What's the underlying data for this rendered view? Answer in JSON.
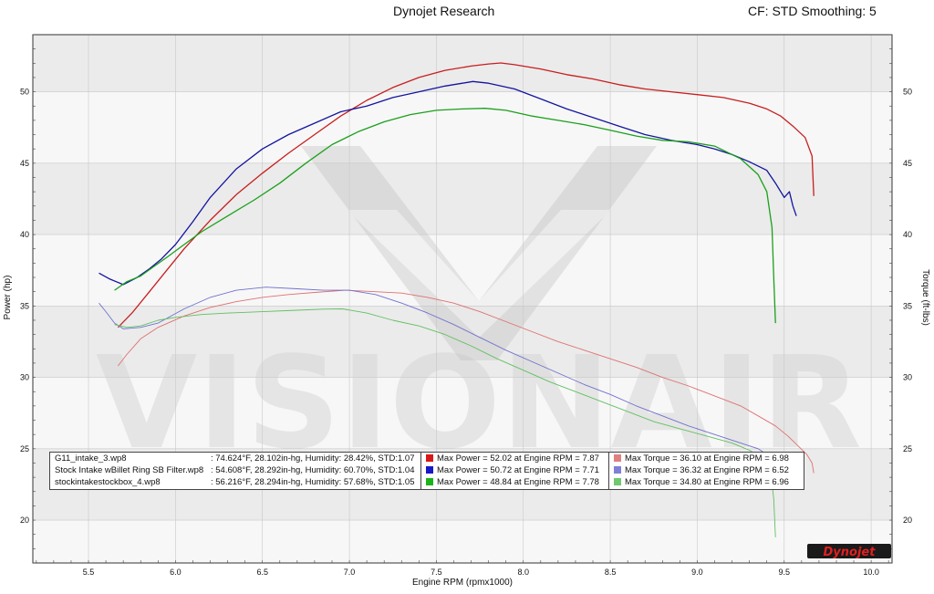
{
  "header": {
    "title": "Dynojet Research",
    "settings": "CF: STD Smoothing: 5"
  },
  "watermark": {
    "text": "VISIONAIR",
    "color": "#cfcfcf"
  },
  "logo": {
    "text": "Dynojet"
  },
  "colors": {
    "run1_power": "#c81e1e",
    "run1_torque": "#e07070",
    "run2_power": "#1414a0",
    "run2_torque": "#7070d0",
    "run3_power": "#1aa01a",
    "run3_torque": "#60c060"
  },
  "legend": {
    "runs": [
      {
        "name": "G11_intake_3.wp8",
        "conditions": ": 74.624°F, 28.102in-hg, Humidity: 28.42%, STD:1.07",
        "max_power": "Max Power = 52.02 at Engine RPM = 7.87",
        "max_torque": "Max Torque = 36.10 at Engine RPM = 6.98",
        "power_color": "#d81818",
        "torque_color": "#e08080"
      },
      {
        "name": "Stock Intake wBillet Ring SB Filter.wp8",
        "conditions": ": 54.608°F, 28.292in-hg, Humidity: 60.70%, STD:1.04",
        "max_power": "Max Power = 50.72 at Engine RPM = 7.71",
        "max_torque": "Max Torque = 36.32 at Engine RPM = 6.52",
        "power_color": "#1818c8",
        "torque_color": "#8080d8"
      },
      {
        "name": "stockintakestockbox_4.wp8",
        "conditions": ": 56.216°F, 28.294in-hg, Humidity: 57.68%, STD:1.05",
        "max_power": "Max Power = 48.84 at Engine RPM = 7.78",
        "max_torque": "Max Torque = 34.80 at Engine RPM = 6.96",
        "power_color": "#18b418",
        "torque_color": "#70c870"
      }
    ]
  },
  "chart_data": {
    "type": "line",
    "xlabel": "Engine RPM (rpmx1000)",
    "ylabel_left": "Power (hp)",
    "ylabel_right": "Torque (ft-lbs)",
    "xlim": [
      5.18,
      10.12
    ],
    "ylim": [
      17.0,
      54.0
    ],
    "x_ticks": [
      "5.5",
      "6.0",
      "6.5",
      "7.0",
      "7.5",
      "8.0",
      "8.5",
      "9.0",
      "9.5",
      "10.0"
    ],
    "y_ticks": [
      "20",
      "25",
      "30",
      "35",
      "40",
      "45",
      "50"
    ],
    "grid": true,
    "series": [
      {
        "name": "G11_intake_3.wp8",
        "kind": "power",
        "color": "#c81e1e",
        "x": [
          5.67,
          5.75,
          5.85,
          5.95,
          6.05,
          6.2,
          6.35,
          6.5,
          6.65,
          6.8,
          6.95,
          7.1,
          7.25,
          7.4,
          7.55,
          7.7,
          7.8,
          7.87,
          7.95,
          8.1,
          8.25,
          8.4,
          8.55,
          8.7,
          8.85,
          9.0,
          9.15,
          9.3,
          9.4,
          9.48,
          9.55,
          9.62,
          9.66,
          9.67
        ],
        "y": [
          33.5,
          34.5,
          36.0,
          37.5,
          39.0,
          41.0,
          42.8,
          44.3,
          45.7,
          47.0,
          48.3,
          49.4,
          50.3,
          51.0,
          51.5,
          51.8,
          51.95,
          52.02,
          51.9,
          51.6,
          51.2,
          50.9,
          50.5,
          50.2,
          50.0,
          49.8,
          49.6,
          49.2,
          48.8,
          48.3,
          47.6,
          46.8,
          45.5,
          42.7
        ]
      },
      {
        "name": "Stock Intake wBillet Ring SB Filter.wp8",
        "kind": "power",
        "color": "#1414a0",
        "x": [
          5.56,
          5.62,
          5.7,
          5.78,
          5.85,
          5.92,
          6.0,
          6.1,
          6.2,
          6.35,
          6.5,
          6.65,
          6.8,
          6.95,
          7.1,
          7.25,
          7.4,
          7.55,
          7.65,
          7.71,
          7.8,
          7.95,
          8.1,
          8.25,
          8.4,
          8.55,
          8.7,
          8.85,
          9.0,
          9.1,
          9.2,
          9.3,
          9.4,
          9.45,
          9.5,
          9.53,
          9.55,
          9.57
        ],
        "y": [
          37.3,
          36.9,
          36.5,
          37.0,
          37.6,
          38.3,
          39.3,
          40.9,
          42.6,
          44.6,
          46.0,
          47.0,
          47.8,
          48.6,
          49.0,
          49.6,
          50.0,
          50.4,
          50.6,
          50.72,
          50.6,
          50.2,
          49.5,
          48.8,
          48.2,
          47.6,
          47.0,
          46.6,
          46.3,
          46.0,
          45.6,
          45.1,
          44.5,
          43.6,
          42.6,
          43.0,
          42.0,
          41.3
        ]
      },
      {
        "name": "stockintakestockbox_4.wp8",
        "kind": "power",
        "color": "#1aa01a",
        "x": [
          5.65,
          5.72,
          5.8,
          5.88,
          5.95,
          6.05,
          6.15,
          6.3,
          6.45,
          6.6,
          6.75,
          6.9,
          7.05,
          7.2,
          7.35,
          7.5,
          7.65,
          7.78,
          7.9,
          8.05,
          8.2,
          8.35,
          8.5,
          8.65,
          8.8,
          8.95,
          9.1,
          9.25,
          9.35,
          9.4,
          9.43,
          9.44,
          9.45
        ],
        "y": [
          36.1,
          36.7,
          37.1,
          37.8,
          38.4,
          39.3,
          40.2,
          41.3,
          42.4,
          43.6,
          45.0,
          46.3,
          47.2,
          47.9,
          48.4,
          48.7,
          48.8,
          48.84,
          48.7,
          48.3,
          48.0,
          47.7,
          47.3,
          46.9,
          46.6,
          46.5,
          46.2,
          45.3,
          44.2,
          43.0,
          40.5,
          37.0,
          33.8
        ]
      },
      {
        "name": "G11_intake_3.wp8",
        "kind": "torque",
        "color": "#e07070",
        "x": [
          5.67,
          5.72,
          5.8,
          5.9,
          6.05,
          6.2,
          6.35,
          6.5,
          6.65,
          6.8,
          6.98,
          7.15,
          7.3,
          7.45,
          7.6,
          7.75,
          7.9,
          8.05,
          8.2,
          8.35,
          8.5,
          8.65,
          8.8,
          8.95,
          9.1,
          9.25,
          9.35,
          9.45,
          9.52,
          9.58,
          9.63,
          9.66,
          9.67
        ],
        "y": [
          30.8,
          31.6,
          32.7,
          33.5,
          34.3,
          34.9,
          35.3,
          35.6,
          35.8,
          35.95,
          36.1,
          36.0,
          35.9,
          35.6,
          35.2,
          34.6,
          33.9,
          33.2,
          32.5,
          31.9,
          31.3,
          30.7,
          30.0,
          29.4,
          28.7,
          28.0,
          27.3,
          26.6,
          25.9,
          25.2,
          24.6,
          24.0,
          23.3
        ]
      },
      {
        "name": "Stock Intake wBillet Ring SB Filter.wp8",
        "kind": "torque",
        "color": "#7070d0",
        "x": [
          5.56,
          5.6,
          5.65,
          5.7,
          5.8,
          5.9,
          6.05,
          6.2,
          6.35,
          6.52,
          6.7,
          6.85,
          7.0,
          7.15,
          7.3,
          7.45,
          7.6,
          7.75,
          7.9,
          8.05,
          8.2,
          8.35,
          8.5,
          8.65,
          8.8,
          8.95,
          9.1,
          9.25,
          9.35,
          9.4,
          9.45
        ],
        "y": [
          35.2,
          34.6,
          33.8,
          33.4,
          33.5,
          33.8,
          34.8,
          35.6,
          36.1,
          36.32,
          36.2,
          36.1,
          36.1,
          35.8,
          35.2,
          34.5,
          33.7,
          32.8,
          31.9,
          31.1,
          30.3,
          29.5,
          28.8,
          28.0,
          27.3,
          26.6,
          26.0,
          25.4,
          25.0,
          24.6,
          23.7
        ]
      },
      {
        "name": "stockintakestockbox_4.wp8",
        "kind": "torque",
        "color": "#60c060",
        "x": [
          5.65,
          5.72,
          5.8,
          5.9,
          6.0,
          6.15,
          6.3,
          6.5,
          6.7,
          6.85,
          6.96,
          7.1,
          7.25,
          7.4,
          7.55,
          7.7,
          7.85,
          8.0,
          8.15,
          8.3,
          8.45,
          8.6,
          8.75,
          8.9,
          9.05,
          9.2,
          9.3,
          9.38,
          9.42,
          9.44,
          9.45
        ],
        "y": [
          33.7,
          33.5,
          33.6,
          34.0,
          34.2,
          34.4,
          34.5,
          34.6,
          34.7,
          34.78,
          34.8,
          34.5,
          34.0,
          33.6,
          33.0,
          32.2,
          31.3,
          30.5,
          29.7,
          29.0,
          28.3,
          27.6,
          26.9,
          26.4,
          25.9,
          25.4,
          24.9,
          24.3,
          23.6,
          21.5,
          18.8
        ]
      }
    ]
  }
}
